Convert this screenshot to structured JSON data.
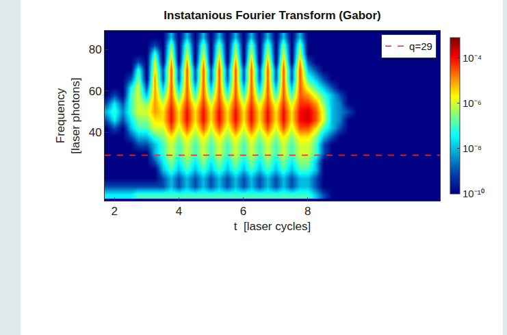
{
  "chart_data": {
    "type": "heatmap",
    "title": "Instatanious Fourier Transform (Gabor)",
    "x_label": "t  [laser cycles]",
    "y_label": "Frequency\n[laser photons]",
    "x": [
      1.75,
      2,
      2.25,
      2.5,
      2.75,
      3,
      3.25,
      3.5,
      3.75,
      4,
      4.25,
      4.5,
      4.75,
      5,
      5.25,
      5.5,
      5.75,
      6,
      6.25,
      6.5,
      6.75,
      7,
      7.25,
      7.5,
      7.75,
      8,
      8.25,
      8.5,
      8.75,
      9,
      9.25,
      9.5,
      9.75
    ],
    "y": [
      10,
      14,
      18,
      22,
      26,
      30,
      34,
      38,
      42,
      46,
      50,
      54,
      58,
      62,
      66,
      70,
      74,
      78,
      82,
      86
    ],
    "cells": [
      [
        3e-08,
        3e-08,
        3e-08,
        3e-08,
        1e-07,
        1e-07,
        1e-07,
        1e-07,
        1e-07,
        1e-07,
        1e-07,
        1e-07,
        1e-07,
        1e-07,
        1e-07,
        1e-07,
        1e-07,
        1e-07,
        1e-07,
        1e-07,
        1e-07,
        1e-07,
        1e-07,
        1e-07,
        1e-07,
        1e-07,
        1e-08,
        1e-09,
        1e-10,
        1e-10,
        1e-10,
        1e-10,
        1e-10
      ],
      [
        1e-09,
        1e-09,
        1e-09,
        1e-09,
        1e-09,
        1e-09,
        1e-09,
        1e-09,
        1e-08,
        1e-09,
        1e-08,
        1e-09,
        1e-08,
        1e-09,
        1e-08,
        1e-09,
        1e-08,
        1e-09,
        1e-08,
        1e-09,
        1e-08,
        1e-09,
        1e-08,
        1e-09,
        1e-08,
        1e-08,
        1e-09,
        1e-10,
        1e-10,
        1e-10,
        1e-10,
        1e-10,
        1e-10
      ],
      [
        1e-10,
        1e-10,
        1e-10,
        1e-10,
        1e-10,
        1e-10,
        1e-10,
        1e-09,
        1e-08,
        1e-09,
        1e-08,
        1e-09,
        1e-08,
        1e-09,
        1e-08,
        1e-09,
        1e-08,
        1e-09,
        1e-08,
        1e-09,
        1e-08,
        1e-09,
        1e-08,
        1e-09,
        1e-08,
        1e-08,
        1e-09,
        1e-10,
        1e-10,
        1e-10,
        1e-10,
        1e-10,
        1e-10
      ],
      [
        1e-10,
        1e-10,
        1e-10,
        1e-10,
        1e-10,
        1e-10,
        1e-10,
        1e-08,
        1e-07,
        1e-08,
        1e-07,
        1e-08,
        1e-07,
        1e-08,
        1e-07,
        1e-08,
        1e-07,
        1e-08,
        1e-07,
        1e-08,
        1e-07,
        1e-08,
        1e-07,
        1e-08,
        1e-07,
        1e-07,
        1e-08,
        1e-10,
        1e-10,
        1e-10,
        1e-10,
        1e-10,
        1e-10
      ],
      [
        1e-10,
        1e-10,
        1e-10,
        1e-10,
        1e-10,
        1e-10,
        1e-09,
        3e-08,
        3e-07,
        3e-08,
        3e-07,
        3e-08,
        3e-07,
        3e-08,
        3e-07,
        3e-08,
        3e-07,
        3e-08,
        3e-07,
        3e-08,
        3e-07,
        3e-08,
        3e-07,
        3e-08,
        3e-07,
        3e-07,
        1e-08,
        1e-10,
        1e-10,
        1e-10,
        1e-10,
        1e-10,
        1e-10
      ],
      [
        1e-10,
        1e-10,
        1e-10,
        1e-10,
        1e-10,
        1e-10,
        1e-08,
        1e-07,
        1e-06,
        1e-07,
        1e-06,
        1e-07,
        1e-06,
        1e-07,
        1e-06,
        1e-07,
        1e-06,
        1e-07,
        1e-06,
        1e-07,
        1e-06,
        1e-07,
        1e-06,
        1e-07,
        1e-06,
        1e-06,
        1e-07,
        1e-09,
        1e-10,
        1e-10,
        1e-10,
        1e-10,
        1e-10
      ],
      [
        1e-10,
        1e-10,
        1e-10,
        1e-10,
        1e-09,
        1e-09,
        1e-08,
        1e-07,
        1e-06,
        1e-07,
        1e-06,
        1e-07,
        1e-06,
        1e-07,
        1e-06,
        1e-07,
        1e-06,
        1e-07,
        1e-06,
        1e-07,
        1e-06,
        1e-07,
        1e-06,
        1e-07,
        1e-06,
        1e-06,
        1e-07,
        1e-09,
        1e-10,
        1e-10,
        1e-10,
        1e-10,
        1e-10
      ],
      [
        1e-10,
        1e-10,
        1e-10,
        1e-09,
        1e-08,
        1e-08,
        1e-07,
        3e-07,
        3e-06,
        3e-07,
        3e-06,
        3e-07,
        3e-06,
        3e-07,
        3e-06,
        3e-07,
        3e-06,
        3e-07,
        3e-06,
        3e-07,
        3e-06,
        3e-07,
        3e-06,
        3e-07,
        3e-06,
        3e-06,
        3e-07,
        1e-08,
        1e-09,
        1e-10,
        1e-10,
        1e-10,
        1e-10
      ],
      [
        1e-10,
        1e-09,
        1e-10,
        1e-08,
        1e-07,
        1e-07,
        1e-06,
        1e-06,
        3e-05,
        1e-06,
        3e-05,
        1e-06,
        3e-05,
        1e-06,
        3e-05,
        1e-06,
        3e-05,
        1e-06,
        3e-05,
        1e-06,
        3e-05,
        1e-06,
        3e-05,
        1e-06,
        3e-05,
        3e-05,
        3e-06,
        1e-07,
        1e-08,
        1e-09,
        1e-10,
        1e-10,
        1e-10
      ],
      [
        1e-09,
        3e-08,
        1e-09,
        3e-08,
        3e-07,
        3e-07,
        3e-06,
        3e-06,
        0.0001,
        3e-06,
        0.0001,
        3e-06,
        0.0001,
        3e-06,
        0.0001,
        3e-06,
        0.0001,
        3e-06,
        0.0001,
        3e-06,
        0.0001,
        3e-06,
        0.0001,
        3e-06,
        0.0001,
        0.0002,
        3e-05,
        1e-06,
        1e-08,
        3e-09,
        1e-10,
        1e-10,
        1e-10
      ],
      [
        1e-08,
        1e-07,
        3e-09,
        1e-07,
        1e-06,
        1e-06,
        1e-05,
        3e-06,
        0.0001,
        3e-06,
        0.0001,
        3e-06,
        0.0001,
        3e-06,
        0.0001,
        3e-06,
        0.0001,
        3e-06,
        0.0001,
        3e-06,
        0.0001,
        3e-06,
        0.0001,
        3e-06,
        0.0001,
        0.0002,
        3e-05,
        1e-06,
        1e-08,
        3e-09,
        1e-09,
        1e-10,
        1e-10
      ],
      [
        1e-09,
        3e-08,
        1e-09,
        1e-07,
        1e-06,
        3e-07,
        1e-05,
        1e-06,
        5e-05,
        1e-06,
        5e-05,
        1e-06,
        5e-05,
        1e-06,
        5e-05,
        1e-06,
        5e-05,
        1e-06,
        5e-05,
        1e-06,
        5e-05,
        1e-06,
        5e-05,
        1e-06,
        5e-05,
        5e-05,
        1e-05,
        3e-07,
        1e-08,
        3e-09,
        1e-10,
        1e-10,
        1e-10
      ],
      [
        1e-10,
        1e-09,
        1e-10,
        1e-07,
        1e-06,
        1e-08,
        1e-05,
        1e-07,
        3e-05,
        1e-07,
        3e-05,
        1e-07,
        3e-05,
        1e-07,
        3e-05,
        1e-07,
        3e-05,
        1e-07,
        3e-05,
        1e-07,
        3e-05,
        1e-07,
        3e-05,
        1e-07,
        3e-05,
        1e-05,
        1e-06,
        1e-07,
        1e-08,
        1e-09,
        1e-10,
        1e-10,
        1e-10
      ],
      [
        1e-10,
        1e-10,
        1e-10,
        3e-08,
        1e-06,
        1e-09,
        1e-05,
        1e-08,
        3e-05,
        1e-08,
        3e-05,
        1e-08,
        3e-05,
        1e-08,
        3e-05,
        1e-08,
        3e-05,
        1e-08,
        3e-05,
        1e-08,
        3e-05,
        1e-08,
        3e-05,
        1e-08,
        3e-05,
        1e-06,
        1e-07,
        1e-08,
        1e-09,
        1e-10,
        1e-10,
        1e-10,
        1e-10
      ],
      [
        1e-10,
        1e-10,
        1e-10,
        1e-09,
        3e-07,
        1e-10,
        1e-05,
        1e-09,
        3e-05,
        1e-09,
        3e-05,
        1e-09,
        3e-05,
        1e-09,
        3e-05,
        1e-09,
        3e-05,
        1e-09,
        3e-05,
        1e-09,
        3e-05,
        1e-09,
        3e-05,
        1e-09,
        3e-05,
        1e-07,
        1e-08,
        1e-09,
        1e-10,
        1e-10,
        1e-10,
        1e-10,
        1e-10
      ],
      [
        1e-10,
        1e-10,
        1e-10,
        1e-10,
        1e-07,
        1e-10,
        3e-06,
        1e-09,
        3e-05,
        1e-09,
        3e-05,
        1e-09,
        3e-05,
        1e-09,
        3e-05,
        1e-09,
        3e-05,
        1e-09,
        3e-05,
        1e-09,
        3e-05,
        1e-09,
        3e-05,
        1e-09,
        3e-05,
        1e-08,
        1e-09,
        1e-10,
        1e-10,
        1e-10,
        1e-10,
        1e-10,
        1e-10
      ],
      [
        1e-10,
        1e-10,
        1e-10,
        1e-10,
        1e-09,
        1e-10,
        1e-06,
        1e-10,
        1e-05,
        1e-10,
        1e-05,
        1e-10,
        1e-05,
        1e-10,
        1e-05,
        1e-10,
        1e-05,
        1e-10,
        1e-05,
        1e-10,
        1e-05,
        1e-10,
        1e-05,
        1e-10,
        1e-05,
        1e-09,
        1e-10,
        1e-10,
        1e-10,
        1e-10,
        1e-10,
        1e-10,
        1e-10
      ],
      [
        1e-10,
        1e-10,
        1e-10,
        1e-10,
        1e-10,
        1e-10,
        1e-07,
        1e-10,
        1e-06,
        1e-10,
        1e-06,
        1e-10,
        1e-06,
        1e-10,
        1e-06,
        1e-10,
        1e-06,
        1e-10,
        1e-06,
        1e-10,
        1e-06,
        1e-10,
        1e-06,
        1e-10,
        1e-06,
        1e-10,
        1e-10,
        1e-10,
        1e-10,
        1e-10,
        1e-10,
        1e-10,
        1e-10
      ],
      [
        1e-10,
        1e-10,
        1e-10,
        1e-10,
        1e-10,
        1e-10,
        1e-09,
        1e-10,
        3e-07,
        1e-10,
        3e-07,
        1e-10,
        3e-07,
        1e-10,
        3e-07,
        1e-10,
        3e-07,
        1e-10,
        3e-07,
        1e-10,
        3e-07,
        1e-10,
        3e-07,
        1e-10,
        3e-07,
        1e-10,
        1e-10,
        1e-10,
        1e-10,
        1e-10,
        1e-10,
        1e-10,
        1e-10
      ],
      [
        1e-10,
        1e-10,
        1e-10,
        1e-10,
        1e-10,
        1e-10,
        1e-10,
        1e-10,
        1e-08,
        1e-10,
        1e-08,
        1e-10,
        1e-08,
        1e-10,
        1e-08,
        1e-10,
        1e-08,
        1e-10,
        1e-08,
        1e-10,
        1e-08,
        1e-10,
        1e-08,
        1e-10,
        1e-08,
        1e-10,
        1e-10,
        1e-10,
        1e-10,
        1e-10,
        1e-10,
        1e-10,
        1e-10
      ]
    ],
    "zlim": [
      1e-10,
      0.0008
    ],
    "zticks": [
      {
        "value": 0.0001,
        "label": "10⁻⁴"
      },
      {
        "value": 1e-06,
        "label": "10⁻⁶"
      },
      {
        "value": 1e-08,
        "label": "10⁻⁸"
      },
      {
        "value": 1e-10,
        "label": "10⁻¹⁰"
      }
    ],
    "lines": [
      {
        "name": "q=29",
        "y": 29,
        "color": "#ff2020",
        "line_style": "dashed"
      }
    ],
    "xlim": [
      1.7,
      12.1
    ],
    "xticks": [
      2,
      4,
      6,
      8
    ],
    "ylim": [
      7,
      89
    ],
    "yticks": [
      40,
      60,
      80
    ],
    "grid": false,
    "legend": "upper right"
  }
}
